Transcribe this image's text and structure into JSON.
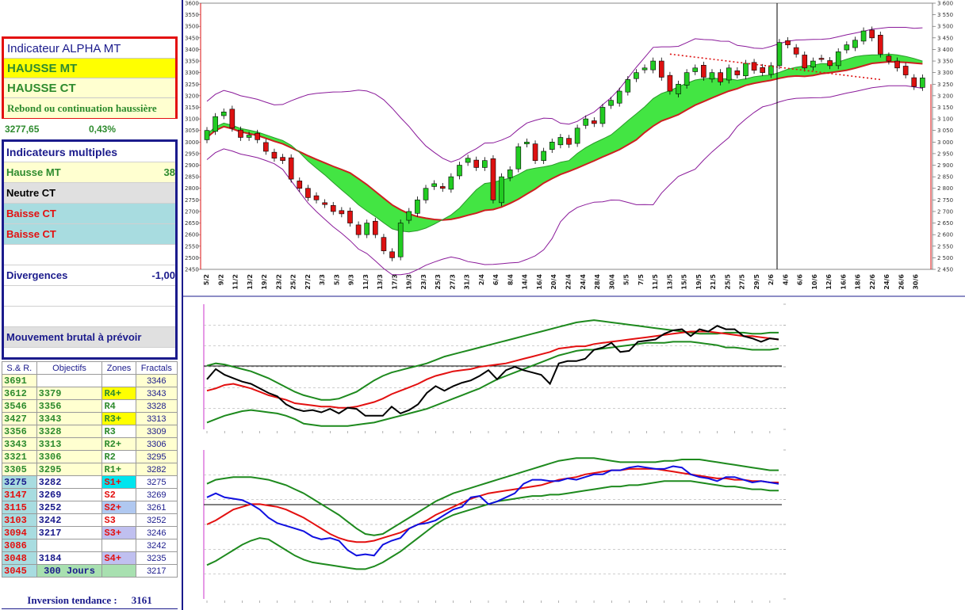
{
  "indicator": {
    "title": "Indicateur ALPHA MT",
    "mt": "HAUSSE MT",
    "ct": "HAUSSE CT",
    "comment": "Rebond ou continuation haussière",
    "price": "3277,65",
    "change": "0,43%"
  },
  "multiples": {
    "title": "Indicateurs multiples",
    "rows": [
      {
        "label": "Hausse MT",
        "value": "38",
        "color": "#2e8b2e",
        "bg": "#ffffd0"
      },
      {
        "label": "Neutre CT",
        "value": "",
        "color": "#000000",
        "bg": "#e0e0e0"
      },
      {
        "label": "Baisse CT",
        "value": "",
        "color": "#e31010",
        "bg": "#a8dce0"
      },
      {
        "label": "Baisse CT",
        "value": "",
        "color": "#e31010",
        "bg": "#a8dce0"
      },
      {
        "label": "",
        "value": "",
        "color": "#000000",
        "bg": "#ffffff"
      },
      {
        "label": "Divergences",
        "value": "-1,00",
        "color": "#1b1b8c",
        "bg": "#ffffff"
      },
      {
        "label": "",
        "value": "",
        "color": "#000000",
        "bg": "#ffffff"
      },
      {
        "label": "",
        "value": "",
        "color": "#000000",
        "bg": "#ffffff"
      },
      {
        "label": "Mouvement brutal à prévoir",
        "value": "",
        "color": "#1b1b8c",
        "bg": "#e0e0e0"
      }
    ]
  },
  "levels_table": {
    "headers": [
      "S.& R.",
      "Objectifs",
      "Zones",
      "Fractals"
    ],
    "rows": [
      {
        "sr": "3691",
        "obj": "",
        "zone": "",
        "fr": "3346",
        "src": "#2e8b2e",
        "sbg": "#ffffd0",
        "oc": "#2e8b2e",
        "obg": "#ffffff",
        "zc": "#2e8b2e",
        "zbg": "#ffffff"
      },
      {
        "sr": "3612",
        "obj": "3379",
        "zone": "R4+",
        "fr": "3343",
        "src": "#2e8b2e",
        "sbg": "#ffffd0",
        "oc": "#2e8b2e",
        "obg": "#ffffd0",
        "zc": "#2e8b2e",
        "zbg": "#ffff00"
      },
      {
        "sr": "3546",
        "obj": "3356",
        "zone": "R4",
        "fr": "3328",
        "src": "#2e8b2e",
        "sbg": "#ffffd0",
        "oc": "#2e8b2e",
        "obg": "#ffffd0",
        "zc": "#2e8b2e",
        "zbg": "#ffffff"
      },
      {
        "sr": "3427",
        "obj": "3343",
        "zone": "R3+",
        "fr": "3313",
        "src": "#2e8b2e",
        "sbg": "#ffffd0",
        "oc": "#2e8b2e",
        "obg": "#ffffd0",
        "zc": "#2e8b2e",
        "zbg": "#ffff00"
      },
      {
        "sr": "3356",
        "obj": "3328",
        "zone": "R3",
        "fr": "3309",
        "src": "#2e8b2e",
        "sbg": "#ffffd0",
        "oc": "#2e8b2e",
        "obg": "#ffffd0",
        "zc": "#2e8b2e",
        "zbg": "#ffffff"
      },
      {
        "sr": "3343",
        "obj": "3313",
        "zone": "R2+",
        "fr": "3306",
        "src": "#2e8b2e",
        "sbg": "#ffffd0",
        "oc": "#2e8b2e",
        "obg": "#ffffd0",
        "zc": "#2e8b2e",
        "zbg": "#ffffd0"
      },
      {
        "sr": "3321",
        "obj": "3306",
        "zone": "R2",
        "fr": "3295",
        "src": "#2e8b2e",
        "sbg": "#ffffd0",
        "oc": "#2e8b2e",
        "obg": "#ffffd0",
        "zc": "#2e8b2e",
        "zbg": "#ffffff"
      },
      {
        "sr": "3305",
        "obj": "3295",
        "zone": "R1+",
        "fr": "3282",
        "src": "#2e8b2e",
        "sbg": "#ffffd0",
        "oc": "#2e8b2e",
        "obg": "#ffffd0",
        "zc": "#2e8b2e",
        "zbg": "#ffffd0"
      },
      {
        "sr": "3275",
        "obj": "3282",
        "zone": "S1+",
        "fr": "3275",
        "src": "#1b1b8c",
        "sbg": "#a8dce0",
        "oc": "#1b1b8c",
        "obg": "#ffffff",
        "zc": "#e31010",
        "zbg": "#00e5ee"
      },
      {
        "sr": "3147",
        "obj": "3269",
        "zone": "S2",
        "fr": "3269",
        "src": "#e31010",
        "sbg": "#a8dce0",
        "oc": "#1b1b8c",
        "obg": "#ffffff",
        "zc": "#e31010",
        "zbg": "#ffffff"
      },
      {
        "sr": "3115",
        "obj": "3252",
        "zone": "S2+",
        "fr": "3261",
        "src": "#e31010",
        "sbg": "#a8dce0",
        "oc": "#1b1b8c",
        "obg": "#ffffff",
        "zc": "#e31010",
        "zbg": "#b0c8f0"
      },
      {
        "sr": "3103",
        "obj": "3242",
        "zone": "S3",
        "fr": "3252",
        "src": "#e31010",
        "sbg": "#a8dce0",
        "oc": "#1b1b8c",
        "obg": "#ffffff",
        "zc": "#e31010",
        "zbg": "#ffffff"
      },
      {
        "sr": "3094",
        "obj": "3217",
        "zone": "S3+",
        "fr": "3246",
        "src": "#e31010",
        "sbg": "#a8dce0",
        "oc": "#1b1b8c",
        "obg": "#ffffff",
        "zc": "#e31010",
        "zbg": "#c0c0f0"
      },
      {
        "sr": "3086",
        "obj": "",
        "zone": "",
        "fr": "3242",
        "src": "#e31010",
        "sbg": "#a8dce0",
        "oc": "#1b1b8c",
        "obg": "#ffffff",
        "zc": "#e31010",
        "zbg": "#ffffff"
      },
      {
        "sr": "3048",
        "obj": "3184",
        "zone": "S4+",
        "fr": "3235",
        "src": "#e31010",
        "sbg": "#a8dce0",
        "oc": "#1b1b8c",
        "obg": "#ffffff",
        "zc": "#e31010",
        "zbg": "#c0c0f0"
      },
      {
        "sr": "3045",
        "obj": "300 Jours",
        "zone": "",
        "fr": "3217",
        "src": "#e31010",
        "sbg": "#a8dce0",
        "oc": "#1b1b8c",
        "obg": "#a8e0b0",
        "zc": "#1b1b8c",
        "zbg": "#a8e0b0"
      }
    ]
  },
  "inversion": {
    "label": "Inversion tendance :",
    "value": "3161"
  },
  "chart_data": [
    {
      "type": "candlestick",
      "ylim": [
        2450,
        3600
      ],
      "yticks": [
        "3 600",
        "3 550",
        "3 500",
        "3 450",
        "3 400",
        "3 350",
        "3 300",
        "3 250",
        "3 200",
        "3 150",
        "3 100",
        "3 050",
        "3 000",
        "2 950",
        "2 900",
        "2 850",
        "2 800",
        "2 750",
        "2 700",
        "2 650",
        "2 600",
        "2 550",
        "2 500",
        "2 450"
      ],
      "x_labels": [
        "5/2",
        "9/2",
        "11/2",
        "13/2",
        "19/2",
        "23/2",
        "25/2",
        "27/2",
        "3/3",
        "5/3",
        "9/3",
        "11/3",
        "13/3",
        "17/3",
        "19/3",
        "23/3",
        "25/3",
        "27/3",
        "31/3",
        "2/4",
        "6/4",
        "8/4",
        "14/4",
        "16/4",
        "20/4",
        "22/4",
        "24/4",
        "28/4",
        "30/4",
        "5/5",
        "7/5",
        "11/5",
        "13/5",
        "15/5",
        "19/5",
        "21/5",
        "25/5",
        "27/5",
        "29/5",
        "2/6",
        "4/6",
        "6/6",
        "10/6",
        "12/6",
        "16/6",
        "18/6",
        "22/6",
        "24/6",
        "26/6",
        "30/6"
      ],
      "close": [
        3050,
        3110,
        3130,
        3060,
        3020,
        3030,
        3010,
        2960,
        2930,
        2920,
        2840,
        2800,
        2760,
        2750,
        2730,
        2700,
        2690,
        2650,
        2600,
        2650,
        2600,
        2530,
        2500,
        2650,
        2700,
        2750,
        2800,
        2820,
        2800,
        2850,
        2900,
        2930,
        2890,
        2920,
        2750,
        2850,
        2880,
        2980,
        3000,
        2920,
        2960,
        3000,
        3020,
        2990,
        3060,
        3100,
        3080,
        3150,
        3180,
        3220,
        3270,
        3300,
        3320,
        3350,
        3280,
        3220,
        3250,
        3300,
        3320,
        3280,
        3300,
        3260,
        3320,
        3290,
        3340,
        3310,
        3300,
        3330,
        3430,
        3420,
        3380,
        3320,
        3350,
        3360,
        3330,
        3390,
        3420,
        3440,
        3480,
        3450,
        3380,
        3350,
        3320,
        3290,
        3240,
        3277
      ]
    },
    {
      "type": "line",
      "series": [
        {
          "name": "",
          "color": "#000000",
          "values": [
            44,
            53,
            48,
            45,
            42,
            40,
            36,
            32,
            29,
            22,
            18,
            16,
            17,
            15,
            18,
            14,
            19,
            18,
            12,
            12,
            12,
            20,
            14,
            17,
            22,
            32,
            38,
            34,
            38,
            41,
            43,
            47,
            52,
            44,
            52,
            55,
            52,
            50,
            48,
            40,
            58,
            60,
            60,
            62,
            70,
            72,
            76,
            68,
            69,
            77,
            78,
            79,
            84,
            87,
            88,
            82,
            88,
            86,
            91,
            88,
            88,
            82,
            80,
            77,
            80,
            79
          ]
        },
        {
          "name": "",
          "color": "#e31010",
          "values": [
            34,
            36,
            39,
            40,
            38,
            36,
            33,
            30,
            28,
            26,
            23,
            22,
            21,
            20,
            20,
            19,
            19,
            20,
            22,
            24,
            27,
            31,
            34,
            37,
            40,
            44,
            47,
            49,
            51,
            52,
            53,
            55,
            56,
            57,
            58,
            60,
            62,
            64,
            66,
            68,
            71,
            72,
            73,
            73,
            75,
            76,
            77,
            78,
            79,
            80,
            81,
            82,
            83,
            84,
            85,
            86,
            86,
            86,
            85,
            84,
            83,
            82,
            82,
            81,
            80,
            79
          ]
        },
        {
          "name": "",
          "color": "#1e8a1e",
          "values": [
            56,
            58,
            57,
            55,
            53,
            51,
            48,
            45,
            41,
            37,
            33,
            30,
            28,
            26,
            26,
            27,
            30,
            33,
            38,
            43,
            47,
            50,
            52,
            54,
            56,
            58,
            61,
            64,
            66,
            68,
            70,
            72,
            74,
            76,
            78,
            80,
            82,
            84,
            86,
            88,
            90,
            92,
            94,
            95,
            96,
            95,
            94,
            93,
            92,
            91,
            90,
            89,
            88,
            87,
            86,
            85,
            84,
            84,
            84,
            85,
            85,
            85,
            84,
            84,
            85,
            85
          ]
        },
        {
          "name": "",
          "color": "#1e8a1e",
          "values": [
            6,
            9,
            12,
            14,
            16,
            17,
            16,
            15,
            14,
            12,
            9,
            5,
            4,
            3,
            3,
            3,
            3,
            4,
            5,
            6,
            8,
            10,
            12,
            14,
            16,
            18,
            21,
            24,
            27,
            30,
            33,
            36,
            40,
            44,
            47,
            50,
            53,
            56,
            59,
            62,
            65,
            67,
            69,
            70,
            70,
            71,
            72,
            73,
            74,
            75,
            76,
            76,
            76,
            77,
            77,
            77,
            76,
            75,
            74,
            72,
            72,
            71,
            70,
            70,
            70,
            71
          ]
        }
      ]
    },
    {
      "type": "line",
      "series": [
        {
          "name": "",
          "color": "#1010e0",
          "values": [
            75,
            78,
            75,
            74,
            73,
            70,
            66,
            60,
            56,
            54,
            52,
            50,
            46,
            44,
            45,
            43,
            36,
            32,
            33,
            32,
            40,
            43,
            45,
            52,
            55,
            56,
            58,
            62,
            66,
            68,
            75,
            76,
            70,
            72,
            75,
            78,
            85,
            88,
            88,
            87,
            87,
            89,
            88,
            90,
            92,
            92,
            95,
            95,
            97,
            98,
            97,
            96,
            96,
            98,
            97,
            92,
            90,
            89,
            87,
            90,
            90,
            88,
            86,
            87,
            86,
            85
          ]
        },
        {
          "name": "",
          "color": "#e31010",
          "values": [
            55,
            58,
            62,
            66,
            68,
            70,
            70,
            69,
            68,
            66,
            63,
            60,
            56,
            52,
            48,
            45,
            43,
            42,
            42,
            43,
            45,
            47,
            49,
            52,
            55,
            58,
            62,
            65,
            68,
            71,
            74,
            76,
            78,
            79,
            80,
            81,
            82,
            83,
            84,
            86,
            88,
            89,
            90,
            92,
            93,
            94,
            95,
            95,
            96,
            96,
            96,
            96,
            95,
            94,
            93,
            92,
            91,
            90,
            89,
            89,
            88,
            88,
            87,
            87,
            86,
            86
          ]
        },
        {
          "name": "",
          "color": "#1e8a1e",
          "values": [
            85,
            88,
            89,
            90,
            90,
            90,
            89,
            88,
            86,
            84,
            81,
            78,
            74,
            70,
            66,
            62,
            57,
            52,
            48,
            47,
            48,
            52,
            56,
            60,
            64,
            68,
            72,
            75,
            78,
            80,
            82,
            84,
            86,
            88,
            90,
            92,
            94,
            96,
            98,
            100,
            102,
            103,
            104,
            104,
            104,
            103,
            102,
            101,
            101,
            101,
            101,
            101,
            102,
            102,
            103,
            103,
            103,
            102,
            101,
            100,
            99,
            98,
            97,
            96,
            95,
            95
          ]
        },
        {
          "name": "",
          "color": "#1e8a1e",
          "values": [
            25,
            28,
            32,
            36,
            40,
            43,
            45,
            44,
            40,
            36,
            32,
            29,
            27,
            26,
            25,
            24,
            23,
            22,
            22,
            24,
            27,
            31,
            35,
            40,
            45,
            50,
            55,
            59,
            62,
            64,
            66,
            68,
            70,
            72,
            73,
            74,
            75,
            76,
            76,
            77,
            77,
            78,
            79,
            80,
            81,
            82,
            83,
            83,
            84,
            84,
            85,
            86,
            87,
            87,
            87,
            87,
            86,
            85,
            84,
            83,
            83,
            82,
            81,
            81,
            80,
            80
          ]
        }
      ]
    }
  ]
}
